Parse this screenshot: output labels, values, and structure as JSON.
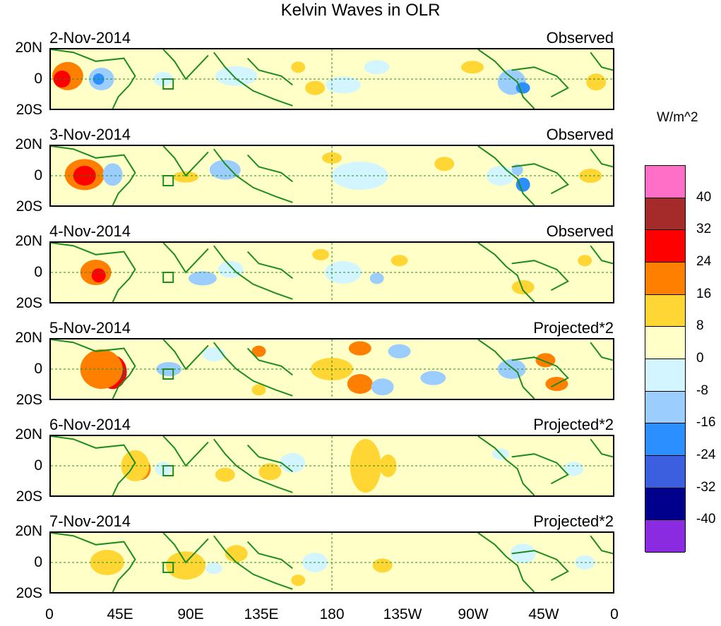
{
  "title": "Kelvin Waves in OLR",
  "panels": [
    {
      "date": "2-Nov-2014",
      "type": "Observed"
    },
    {
      "date": "3-Nov-2014",
      "type": "Observed"
    },
    {
      "date": "4-Nov-2014",
      "type": "Observed"
    },
    {
      "date": "5-Nov-2014",
      "type": "Projected*2"
    },
    {
      "date": "6-Nov-2014",
      "type": "Projected*2"
    },
    {
      "date": "7-Nov-2014",
      "type": "Projected*2"
    }
  ],
  "y_labels": [
    "20N",
    "0",
    "20S"
  ],
  "x_labels": [
    "0",
    "45E",
    "90E",
    "135E",
    "180",
    "135W",
    "90W",
    "45W",
    "0"
  ],
  "colorbar": {
    "unit": "W/m^2",
    "labels": [
      "40",
      "32",
      "24",
      "16",
      "8",
      "0",
      "-8",
      "-16",
      "-24",
      "-32",
      "-40"
    ],
    "colors": [
      "#ff6ec7",
      "#a52a2a",
      "#ff0000",
      "#ff7f00",
      "#ffd633",
      "#ffffc8",
      "#d2f5ff",
      "#9ccdff",
      "#2b8fff",
      "#3c5fe0",
      "#00008c",
      "#8a2be2"
    ]
  },
  "map_colors": {
    "coast": "#1e8c1e",
    "equator": "#1e8c1e"
  }
}
